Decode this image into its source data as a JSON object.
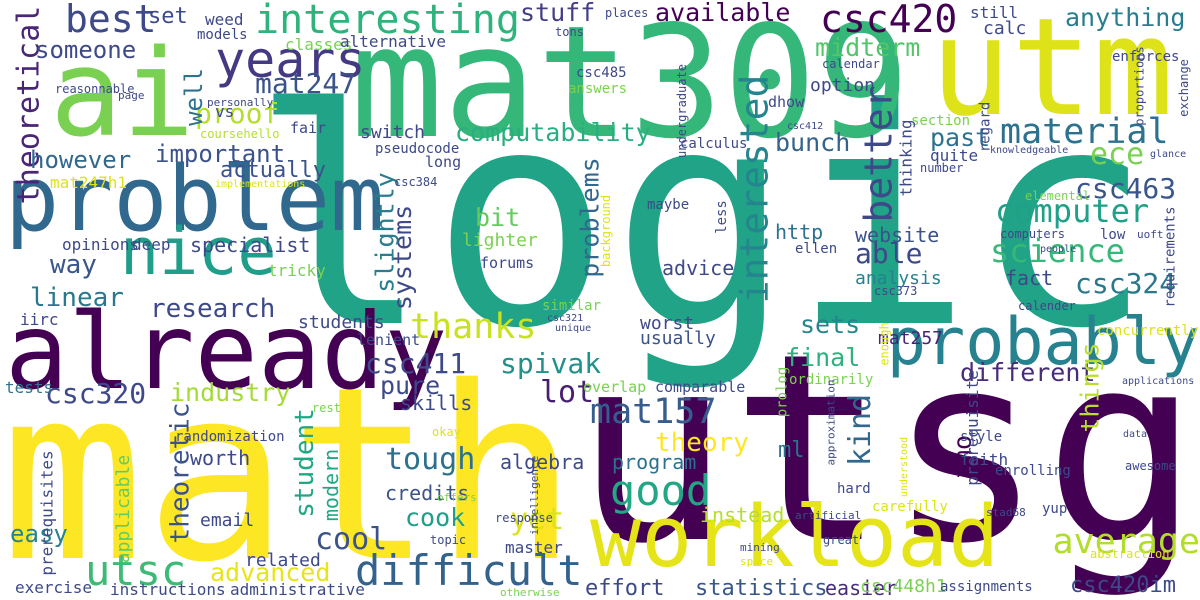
{
  "background": "#ffffff",
  "words": [
    {
      "id": "logic",
      "text": "logic",
      "color": "#20a386"
    },
    {
      "id": "utsg",
      "text": "utsg",
      "color": "#440154"
    },
    {
      "id": "math",
      "text": "math",
      "color": "#fde725"
    },
    {
      "id": "mat309",
      "text": "mat309",
      "color": "#35b779"
    },
    {
      "id": "ai",
      "text": "ai",
      "color": "#7ad151"
    },
    {
      "id": "utm",
      "text": "utm",
      "color": "#dde318"
    },
    {
      "id": "already",
      "text": "already",
      "color": "#440154"
    },
    {
      "id": "problem",
      "text": "problem",
      "color": "#31688e"
    },
    {
      "id": "workload",
      "text": "workload",
      "color": "#e5e419"
    },
    {
      "id": "probably",
      "text": "probably",
      "color": "#26828e"
    },
    {
      "id": "nice",
      "text": "nice",
      "color": "#1f9e89"
    },
    {
      "id": "years",
      "text": "years",
      "color": "#443983"
    },
    {
      "id": "interesting",
      "text": "interesting",
      "color": "#2eb37c"
    },
    {
      "id": "best",
      "text": "best",
      "color": "#3e4989"
    },
    {
      "id": "csc420",
      "text": "csc420",
      "color": "#440154"
    },
    {
      "id": "mat247",
      "text": "mat247",
      "color": "#3b528b"
    },
    {
      "id": "material",
      "text": "material",
      "color": "#2c728e"
    },
    {
      "id": "computer",
      "text": "computer",
      "color": "#1fa088"
    },
    {
      "id": "science",
      "text": "science",
      "color": "#37b878"
    },
    {
      "id": "thanks",
      "text": "thanks",
      "color": "#cae11f"
    },
    {
      "id": "difficult",
      "text": "difficult",
      "color": "#33638d"
    },
    {
      "id": "good",
      "text": "good",
      "color": "#22a785"
    },
    {
      "id": "mat157",
      "text": "mat157",
      "color": "#365d8d"
    },
    {
      "id": "average",
      "text": "average",
      "color": "#b2dd2d"
    },
    {
      "id": "utsc",
      "text": "utsc",
      "color": "#3bbb75"
    },
    {
      "id": "theoretical",
      "text": "theoretical",
      "color": "#482576"
    },
    {
      "id": "csc320",
      "text": "csc320",
      "color": "#3e4989"
    },
    {
      "id": "ece",
      "text": "ece",
      "color": "#7ad151"
    },
    {
      "id": "csc463",
      "text": "csc463",
      "color": "#39568c"
    },
    {
      "id": "csc324",
      "text": "csc324",
      "color": "#2a788e"
    },
    {
      "id": "interested",
      "text": "interested",
      "color": "#25858e"
    },
    {
      "id": "better",
      "text": "better",
      "color": "#3e4989"
    },
    {
      "id": "computability",
      "text": "computability",
      "color": "#29af7f"
    },
    {
      "id": "midterm",
      "text": "midterm",
      "color": "#52c569"
    },
    {
      "id": "someone",
      "text": "someone",
      "color": "#3e4989"
    },
    {
      "id": "stuff",
      "text": "stuff",
      "color": "#433e85"
    },
    {
      "id": "available",
      "text": "available",
      "color": "#440154"
    },
    {
      "id": "anything",
      "text": "anything",
      "color": "#287d8e"
    },
    {
      "id": "important",
      "text": "important",
      "color": "#3b528b"
    },
    {
      "id": "proof",
      "text": "proof",
      "color": "#b5de2b"
    },
    {
      "id": "however",
      "text": "however",
      "color": "#31688e"
    },
    {
      "id": "linear",
      "text": "linear",
      "color": "#2a788e"
    },
    {
      "id": "research",
      "text": "research",
      "color": "#3e4989"
    },
    {
      "id": "way",
      "text": "way",
      "color": "#39568c"
    },
    {
      "id": "industry",
      "text": "industry",
      "color": "#a5db36"
    },
    {
      "id": "easy",
      "text": "easy",
      "color": "#26828e"
    },
    {
      "id": "advanced",
      "text": "advanced",
      "color": "#e7e419"
    },
    {
      "id": "cool",
      "text": "cool",
      "color": "#3b528b"
    },
    {
      "id": "cook",
      "text": "cook",
      "color": "#1f9e89"
    },
    {
      "id": "tough",
      "text": "tough",
      "color": "#2c728e"
    },
    {
      "id": "theory",
      "text": "theory",
      "color": "#fde725"
    },
    {
      "id": "csc411",
      "text": "csc411",
      "color": "#3e4989"
    },
    {
      "id": "spivak",
      "text": "spivak",
      "color": "#21918c"
    },
    {
      "id": "lot",
      "text": "lot",
      "color": "#481f70"
    },
    {
      "id": "kind",
      "text": "kind",
      "color": "#31688e"
    },
    {
      "id": "different",
      "text": "different",
      "color": "#472c7a"
    },
    {
      "id": "final",
      "text": "final",
      "color": "#2db27d"
    },
    {
      "id": "pure",
      "text": "pure",
      "color": "#3e4989"
    },
    {
      "id": "sets",
      "text": "sets",
      "color": "#25858e"
    },
    {
      "id": "yet",
      "text": "yet",
      "color": "#dde318"
    },
    {
      "id": "bunch",
      "text": "bunch",
      "color": "#33638d"
    },
    {
      "id": "past",
      "text": "past",
      "color": "#2d718e"
    },
    {
      "id": "bit",
      "text": "bit",
      "color": "#65cb5e"
    },
    {
      "id": "able",
      "text": "able",
      "color": "#3e4989"
    },
    {
      "id": "actually",
      "text": "actually",
      "color": "#3b528b"
    },
    {
      "id": "specialist",
      "text": "specialist",
      "color": "#3e4989"
    },
    {
      "id": "theoretic",
      "text": "theoretic",
      "color": "#3b528b"
    },
    {
      "id": "student",
      "text": "student",
      "color": "#22a785"
    },
    {
      "id": "systems",
      "text": "systems",
      "color": "#3e4989"
    },
    {
      "id": "slightly",
      "text": "slightly",
      "color": "#287d8e"
    },
    {
      "id": "problems",
      "text": "problems",
      "color": "#31688e"
    },
    {
      "id": "things",
      "text": "things",
      "color": "#b8de29"
    },
    {
      "id": "imo",
      "text": "imo",
      "color": "#440154"
    },
    {
      "id": "well",
      "text": "well",
      "color": "#2c728e"
    },
    {
      "id": "set",
      "text": "set",
      "color": "#3e4989"
    },
    {
      "id": "csc411b",
      "text": "csc485",
      "color": "#3e4989"
    },
    {
      "id": "mat257",
      "text": "mat257",
      "color": "#482475"
    },
    {
      "id": "csc420im",
      "text": "csc420im",
      "color": "#3e4989"
    },
    {
      "id": "statistics",
      "text": "statistics",
      "color": "#39568c"
    },
    {
      "id": "effort",
      "text": "effort",
      "color": "#3e4989"
    },
    {
      "id": "easier",
      "text": "easier",
      "color": "#472c7a"
    },
    {
      "id": "csc448h1",
      "text": "csc448h1",
      "color": "#7ad151"
    },
    {
      "id": "http",
      "text": "http",
      "color": "#2c728e"
    },
    {
      "id": "advice",
      "text": "advice",
      "color": "#3e4989"
    },
    {
      "id": "website",
      "text": "website",
      "color": "#3b528b"
    },
    {
      "id": "analysis",
      "text": "analysis",
      "color": "#26828e"
    },
    {
      "id": "fact",
      "text": "fact",
      "color": "#3e4989"
    },
    {
      "id": "ml",
      "text": "ml",
      "color": "#2c728e"
    },
    {
      "id": "worst",
      "text": "worst",
      "color": "#3e4989"
    },
    {
      "id": "usually",
      "text": "usually",
      "color": "#3b528b"
    },
    {
      "id": "instead",
      "text": "instead",
      "color": "#b5de2b"
    },
    {
      "id": "program",
      "text": "program",
      "color": "#2c728e"
    },
    {
      "id": "algebra",
      "text": "algebra",
      "color": "#3e4989"
    },
    {
      "id": "worth",
      "text": "worth",
      "color": "#3e4989"
    },
    {
      "id": "credits",
      "text": "credits",
      "color": "#3b528b"
    },
    {
      "id": "skills",
      "text": "skills",
      "color": "#3e4989"
    },
    {
      "id": "modern",
      "text": "modern",
      "color": "#22a785"
    },
    {
      "id": "email",
      "text": "email",
      "color": "#3e4989"
    },
    {
      "id": "applicable",
      "text": "applicable",
      "color": "#65cb5e"
    },
    {
      "id": "related",
      "text": "related",
      "color": "#3e4989"
    },
    {
      "id": "exercise",
      "text": "exercise",
      "color": "#3e4989"
    },
    {
      "id": "instructions",
      "text": "instructions",
      "color": "#3e4989"
    },
    {
      "id": "administrative",
      "text": "administrative",
      "color": "#3e4989"
    },
    {
      "id": "master",
      "text": "master",
      "color": "#3e4989"
    },
    {
      "id": "prerequisites",
      "text": "prerequisites",
      "color": "#3e4989"
    },
    {
      "id": "randomization",
      "text": "randomization",
      "color": "#3e4989"
    },
    {
      "id": "tests",
      "text": "tests",
      "color": "#2c728e"
    },
    {
      "id": "iirc",
      "text": "iirc",
      "color": "#3e4989"
    },
    {
      "id": "opinions",
      "text": "opinions",
      "color": "#3e4989"
    },
    {
      "id": "deep",
      "text": "deep",
      "color": "#3e4989"
    },
    {
      "id": "tricky",
      "text": "tricky",
      "color": "#7ad151"
    },
    {
      "id": "mat247h1",
      "text": "mat247h1",
      "color": "#dde318"
    },
    {
      "id": "vs",
      "text": "vs",
      "color": "#3e4989"
    },
    {
      "id": "weed",
      "text": "weed",
      "color": "#3e4989"
    },
    {
      "id": "classes",
      "text": "classes",
      "color": "#7ad151"
    },
    {
      "id": "alternative",
      "text": "alternative",
      "color": "#3e4989"
    },
    {
      "id": "models",
      "text": "models",
      "color": "#3e4989"
    },
    {
      "id": "reasonnable",
      "text": "reasonnable",
      "color": "#3e4989"
    },
    {
      "id": "page",
      "text": "page",
      "color": "#3e4989"
    },
    {
      "id": "personally",
      "text": "personally",
      "color": "#3e4989"
    },
    {
      "id": "coursehello",
      "text": "coursehello",
      "color": "#b5de2b"
    },
    {
      "id": "fair",
      "text": "fair",
      "color": "#3e4989"
    },
    {
      "id": "switch",
      "text": "switch",
      "color": "#3e4989"
    },
    {
      "id": "pseudocode",
      "text": "pseudocode",
      "color": "#3e4989"
    },
    {
      "id": "long",
      "text": "long",
      "color": "#3e4989"
    },
    {
      "id": "implementations",
      "text": "implementations",
      "color": "#dde318"
    },
    {
      "id": "students",
      "text": "students",
      "color": "#3e4989"
    },
    {
      "id": "lenient",
      "text": "lenient",
      "color": "#3e4989"
    },
    {
      "id": "csc321",
      "text": "csc321",
      "color": "#3e4989"
    },
    {
      "id": "unique",
      "text": "unique",
      "color": "#3e4989"
    },
    {
      "id": "overlap",
      "text": "overlap",
      "color": "#7ad151"
    },
    {
      "id": "comparable",
      "text": "comparable",
      "color": "#3e4989"
    },
    {
      "id": "rest",
      "text": "rest",
      "color": "#7ad151"
    },
    {
      "id": "okay",
      "text": "okay",
      "color": "#dde318"
    },
    {
      "id": "intelligence",
      "text": "intelligence",
      "color": "#3e4989"
    },
    {
      "id": "offers",
      "text": "offers",
      "color": "#7ad151"
    },
    {
      "id": "topic",
      "text": "topic",
      "color": "#3e4989"
    },
    {
      "id": "otherwise",
      "text": "otherwise",
      "color": "#7ad151"
    },
    {
      "id": "response",
      "text": "response",
      "color": "#3e4989"
    },
    {
      "id": "forums",
      "text": "forums",
      "color": "#3e4989"
    },
    {
      "id": "lighter",
      "text": "lighter",
      "color": "#7ad151"
    },
    {
      "id": "background",
      "text": "background",
      "color": "#dde318"
    },
    {
      "id": "maybe",
      "text": "maybe",
      "color": "#3e4989"
    },
    {
      "id": "less",
      "text": "less",
      "color": "#3e4989"
    },
    {
      "id": "similar",
      "text": "similar",
      "color": "#7ad151"
    },
    {
      "id": "tons",
      "text": "tons",
      "color": "#3e4989"
    },
    {
      "id": "places",
      "text": "places",
      "color": "#3e4989"
    },
    {
      "id": "undergraduate",
      "text": "undergraduate",
      "color": "#3e4989"
    },
    {
      "id": "answers",
      "text": "answers",
      "color": "#7ad151"
    },
    {
      "id": "dhow",
      "text": "dhow",
      "color": "#3e4989"
    },
    {
      "id": "csc485",
      "text": "csc485",
      "color": "#3e4989"
    },
    {
      "id": "calculus",
      "text": "calculus",
      "color": "#3e4989"
    },
    {
      "id": "csc384",
      "text": "csc384",
      "color": "#3e4989"
    },
    {
      "id": "csc412",
      "text": "csc412",
      "color": "#3e4989"
    },
    {
      "id": "option",
      "text": "option",
      "color": "#3e4989"
    },
    {
      "id": "calc",
      "text": "calc",
      "color": "#3e4989"
    },
    {
      "id": "still",
      "text": "still",
      "color": "#3e4989"
    },
    {
      "id": "calendar",
      "text": "calendar",
      "color": "#3e4989"
    },
    {
      "id": "enforces",
      "text": "enforces",
      "color": "#3e4989"
    },
    {
      "id": "exchange",
      "text": "exchange",
      "color": "#3e4989"
    },
    {
      "id": "proportions",
      "text": "proportions",
      "color": "#3e4989"
    },
    {
      "id": "section",
      "text": "section",
      "color": "#7ad151"
    },
    {
      "id": "quite",
      "text": "quite",
      "color": "#3e4989"
    },
    {
      "id": "regard",
      "text": "regard",
      "color": "#3e4989"
    },
    {
      "id": "thinking",
      "text": "thinking",
      "color": "#3e4989"
    },
    {
      "id": "number",
      "text": "number",
      "color": "#3e4989"
    },
    {
      "id": "knowledgeable",
      "text": "knowledgeable",
      "color": "#3e4989"
    },
    {
      "id": "glance",
      "text": "glance",
      "color": "#3e4989"
    },
    {
      "id": "requirements",
      "text": "requirements",
      "color": "#3e4989"
    },
    {
      "id": "elemental",
      "text": "elemental",
      "color": "#7ad151"
    },
    {
      "id": "computers",
      "text": "computers",
      "color": "#3e4989"
    },
    {
      "id": "low",
      "text": "low",
      "color": "#3e4989"
    },
    {
      "id": "uoft",
      "text": "uoft",
      "color": "#3e4989"
    },
    {
      "id": "people",
      "text": "people",
      "color": "#3e4989"
    },
    {
      "id": "ellen",
      "text": "ellen",
      "color": "#3e4989"
    },
    {
      "id": "csc373",
      "text": "csc373",
      "color": "#3e4989"
    },
    {
      "id": "concurrently",
      "text": "concurrently",
      "color": "#dde318"
    },
    {
      "id": "enough",
      "text": "enough",
      "color": "#dde318"
    },
    {
      "id": "calender",
      "text": "calender",
      "color": "#3e4989"
    },
    {
      "id": "ordinarily",
      "text": "ordinarily",
      "color": "#7ad151"
    },
    {
      "id": "prolog",
      "text": "prolog",
      "color": "#7ad151"
    },
    {
      "id": "prerequisite",
      "text": "prerequisite",
      "color": "#3e4989"
    },
    {
      "id": "style",
      "text": "style",
      "color": "#3e4989"
    },
    {
      "id": "applications",
      "text": "applications",
      "color": "#3e4989"
    },
    {
      "id": "faith",
      "text": "faith",
      "color": "#3e4989"
    },
    {
      "id": "enrolling",
      "text": "enrolling",
      "color": "#3e4989"
    },
    {
      "id": "approximation",
      "text": "approximation",
      "color": "#3e4989"
    },
    {
      "id": "understood",
      "text": "understood",
      "color": "#dde318"
    },
    {
      "id": "data",
      "text": "data",
      "color": "#3e4989"
    },
    {
      "id": "awesome",
      "text": "awesome",
      "color": "#3e4989"
    },
    {
      "id": "hard",
      "text": "hard",
      "color": "#3e4989"
    },
    {
      "id": "carefully",
      "text": "carefully",
      "color": "#dde318"
    },
    {
      "id": "artificial",
      "text": "artificial",
      "color": "#3e4989"
    },
    {
      "id": "stad68",
      "text": "stad68",
      "color": "#3e4989"
    },
    {
      "id": "yup",
      "text": "yup",
      "color": "#3e4989"
    },
    {
      "id": "great",
      "text": "great",
      "color": "#3e4989"
    },
    {
      "id": "mining",
      "text": "mining",
      "color": "#3e4989"
    },
    {
      "id": "space",
      "text": "space",
      "color": "#dde318"
    },
    {
      "id": "abstraction",
      "text": "abstraction",
      "color": "#dde318"
    },
    {
      "id": "assignments",
      "text": "assignments",
      "color": "#3e4989"
    }
  ]
}
